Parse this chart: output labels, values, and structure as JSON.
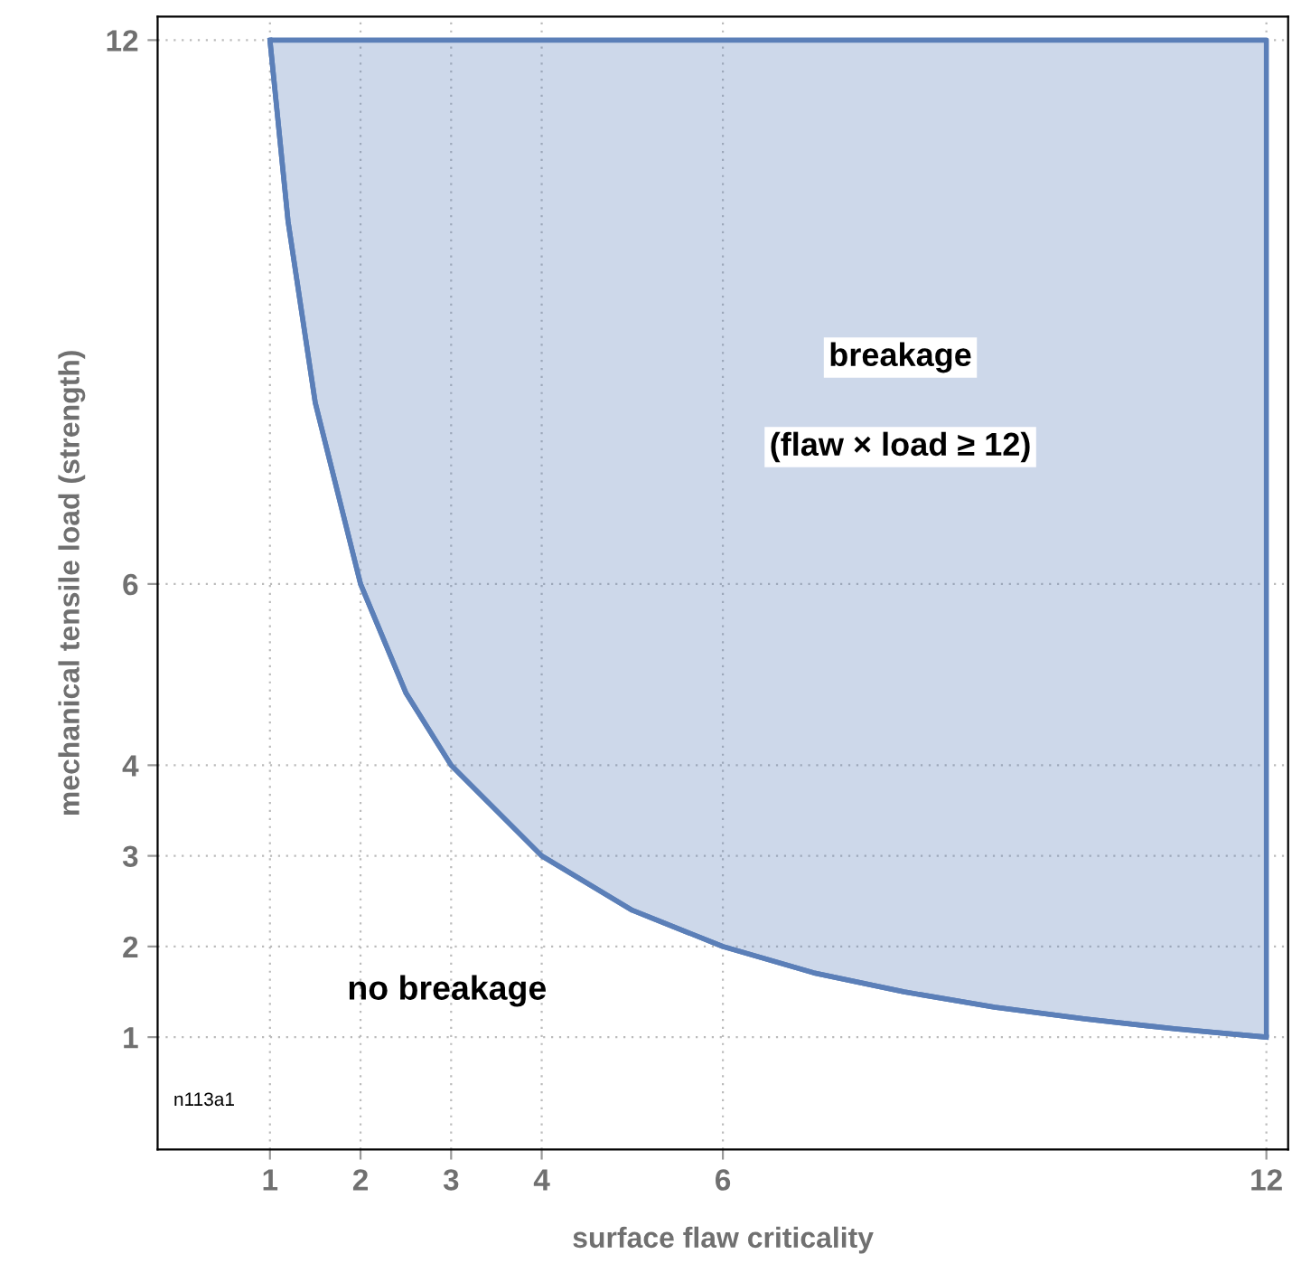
{
  "chart_data": {
    "type": "line",
    "xlabel": "surface flaw criticality",
    "ylabel": "mechanical tensile load (strength)",
    "series": [
      {
        "color": "#5b7fb8",
        "x": [
          1,
          1.2,
          1.5,
          2,
          2.5,
          3,
          4,
          5,
          6,
          7,
          8,
          9,
          10,
          11,
          12
        ],
        "values": [
          12,
          10,
          8,
          6,
          4.8,
          4,
          3,
          2.4,
          2,
          1.71,
          1.5,
          1.33,
          1.2,
          1.09,
          1
        ],
        "lower": [
          12,
          10,
          8,
          6,
          4.8,
          4,
          3,
          2.4,
          2,
          1.71,
          1.5,
          1.33,
          1.2,
          1.09,
          1
        ],
        "upper": [
          12,
          12,
          12,
          12,
          12,
          12,
          12,
          12,
          12,
          12,
          12,
          12,
          12,
          12,
          12
        ]
      }
    ],
    "xlim": [
      -0.24,
      12.24
    ],
    "ylim": [
      -0.24,
      12.26
    ],
    "xticks": [
      1,
      2,
      3,
      4,
      6,
      12
    ],
    "yticks": [
      1,
      2,
      3,
      4,
      6,
      12
    ],
    "grid": true,
    "legend": false,
    "marker": "none",
    "line_style": "solid",
    "annotations": [
      "breakage",
      "(flaw × load ≥ 12)",
      "no breakage",
      "n113a1"
    ]
  }
}
